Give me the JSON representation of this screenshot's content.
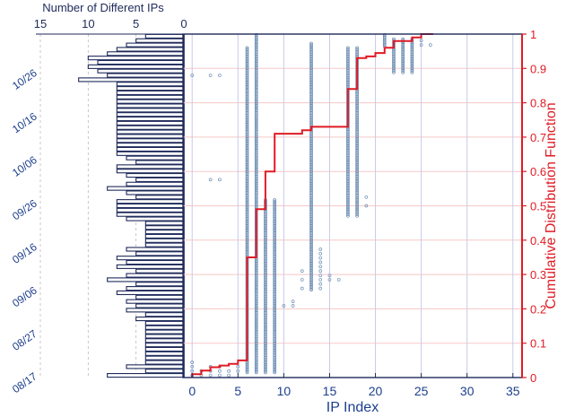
{
  "colors": {
    "axis_dark": "#1f2a5a",
    "bar_fill": "#ffffff",
    "bar_stroke": "#1f2a5a",
    "scatter": "#6f8fb4",
    "cdf_line": "#e01b24",
    "right_axis": "#e01b24",
    "grid_vertical": "#c8cbe8",
    "grid_horizontal": "#f7c8c8",
    "label_blue": "#1c3f8c"
  },
  "chart_data": [
    {
      "type": "bar",
      "orientation": "horizontal",
      "title": "",
      "xlabel": "Number of Different IPs",
      "xlim": [
        15,
        0
      ],
      "xticks": [
        15,
        10,
        5,
        0
      ],
      "ylabel": "",
      "yticks": [
        "08/17",
        "08/27",
        "09/06",
        "09/16",
        "09/26",
        "10/06",
        "10/16",
        "10/26"
      ],
      "ytick_days": [
        0,
        10,
        20,
        30,
        40,
        50,
        60,
        70
      ],
      "grid": "vertical dashed",
      "bars": [
        {
          "day": 0,
          "value": 8
        },
        {
          "day": 1,
          "value": 4
        },
        {
          "day": 2,
          "value": 6
        },
        {
          "day": 3,
          "value": 4
        },
        {
          "day": 4,
          "value": 4
        },
        {
          "day": 5,
          "value": 4
        },
        {
          "day": 6,
          "value": 4
        },
        {
          "day": 7,
          "value": 4
        },
        {
          "day": 8,
          "value": 4
        },
        {
          "day": 9,
          "value": 4
        },
        {
          "day": 10,
          "value": 4
        },
        {
          "day": 11,
          "value": 4
        },
        {
          "day": 12,
          "value": 4
        },
        {
          "day": 13,
          "value": 5
        },
        {
          "day": 14,
          "value": 4
        },
        {
          "day": 15,
          "value": 6
        },
        {
          "day": 16,
          "value": 5
        },
        {
          "day": 17,
          "value": 6
        },
        {
          "day": 18,
          "value": 5
        },
        {
          "day": 19,
          "value": 7
        },
        {
          "day": 20,
          "value": 6
        },
        {
          "day": 21,
          "value": 5
        },
        {
          "day": 22,
          "value": 8
        },
        {
          "day": 23,
          "value": 6
        },
        {
          "day": 24,
          "value": 5
        },
        {
          "day": 25,
          "value": 7
        },
        {
          "day": 26,
          "value": 6
        },
        {
          "day": 27,
          "value": 7
        },
        {
          "day": 28,
          "value": 5
        },
        {
          "day": 29,
          "value": 6
        },
        {
          "day": 30,
          "value": 4
        },
        {
          "day": 31,
          "value": 4
        },
        {
          "day": 32,
          "value": 4
        },
        {
          "day": 33,
          "value": 4
        },
        {
          "day": 34,
          "value": 4
        },
        {
          "day": 35,
          "value": 4
        },
        {
          "day": 36,
          "value": 6
        },
        {
          "day": 37,
          "value": 7
        },
        {
          "day": 38,
          "value": 7
        },
        {
          "day": 39,
          "value": 7
        },
        {
          "day": 40,
          "value": 7
        },
        {
          "day": 41,
          "value": 5
        },
        {
          "day": 42,
          "value": 6
        },
        {
          "day": 43,
          "value": 8
        },
        {
          "day": 44,
          "value": 6
        },
        {
          "day": 45,
          "value": 5
        },
        {
          "day": 46,
          "value": 6
        },
        {
          "day": 47,
          "value": 7
        },
        {
          "day": 48,
          "value": 7
        },
        {
          "day": 49,
          "value": 5
        },
        {
          "day": 50,
          "value": 6
        },
        {
          "day": 51,
          "value": 7
        },
        {
          "day": 52,
          "value": 7
        },
        {
          "day": 53,
          "value": 7
        },
        {
          "day": 54,
          "value": 7
        },
        {
          "day": 55,
          "value": 7
        },
        {
          "day": 56,
          "value": 7
        },
        {
          "day": 57,
          "value": 7
        },
        {
          "day": 58,
          "value": 7
        },
        {
          "day": 59,
          "value": 7
        },
        {
          "day": 60,
          "value": 7
        },
        {
          "day": 61,
          "value": 7
        },
        {
          "day": 62,
          "value": 7
        },
        {
          "day": 63,
          "value": 7
        },
        {
          "day": 64,
          "value": 7
        },
        {
          "day": 65,
          "value": 7
        },
        {
          "day": 66,
          "value": 7
        },
        {
          "day": 67,
          "value": 7
        },
        {
          "day": 68,
          "value": 11
        },
        {
          "day": 69,
          "value": 8
        },
        {
          "day": 70,
          "value": 9
        },
        {
          "day": 71,
          "value": 10
        },
        {
          "day": 72,
          "value": 9
        },
        {
          "day": 73,
          "value": 10
        },
        {
          "day": 74,
          "value": 8
        },
        {
          "day": 75,
          "value": 7
        },
        {
          "day": 76,
          "value": 6
        },
        {
          "day": 77,
          "value": 5
        },
        {
          "day": 78,
          "value": 4
        }
      ]
    },
    {
      "type": "scatter",
      "xlabel": "IP Index",
      "xlim": [
        -1,
        36
      ],
      "xticks": [
        0,
        5,
        10,
        15,
        20,
        25,
        30,
        35
      ],
      "ylim_days": [
        0,
        79
      ],
      "grid": "vertical solid",
      "columns": [
        {
          "x": 0,
          "days": [
            0,
            1,
            2,
            3,
            69
          ]
        },
        {
          "x": 1,
          "days": [
            0,
            1
          ]
        },
        {
          "x": 2,
          "days": [
            0,
            1,
            2,
            45,
            69
          ]
        },
        {
          "x": 3,
          "days": [
            0,
            1,
            2,
            45,
            69
          ]
        },
        {
          "x": 4,
          "days": [
            0,
            1
          ]
        },
        {
          "x": 5,
          "days": [
            1,
            2
          ]
        },
        {
          "x": 6,
          "days_range": [
            1,
            75
          ]
        },
        {
          "x": 7,
          "days_range": [
            1,
            78
          ]
        },
        {
          "x": 8,
          "days_range": [
            1,
            40
          ]
        },
        {
          "x": 9,
          "days_range": [
            1,
            40
          ]
        },
        {
          "x": 10,
          "days": [
            16
          ]
        },
        {
          "x": 11,
          "days": [
            16,
            17
          ]
        },
        {
          "x": 12,
          "days": [
            20,
            22,
            24
          ]
        },
        {
          "x": 13,
          "days_range": [
            20,
            76
          ]
        },
        {
          "x": 14,
          "days": [
            20,
            21,
            22,
            23,
            24,
            25,
            26,
            27,
            28,
            29
          ]
        },
        {
          "x": 15,
          "days": [
            22,
            23
          ]
        },
        {
          "x": 16,
          "days": [
            22
          ]
        },
        {
          "x": 17,
          "days_range": [
            37,
            75
          ]
        },
        {
          "x": 18,
          "days_range": [
            37,
            75
          ]
        },
        {
          "x": 19,
          "days": [
            39,
            41
          ]
        },
        {
          "x": 21,
          "days_range": [
            76,
            78
          ]
        },
        {
          "x": 22,
          "days_range": [
            70,
            77
          ]
        },
        {
          "x": 23,
          "days_range": [
            70,
            77
          ]
        },
        {
          "x": 24,
          "days_range": [
            70,
            77
          ]
        },
        {
          "x": 25,
          "days": [
            76,
            77
          ]
        },
        {
          "x": 26,
          "days": [
            76
          ]
        }
      ]
    },
    {
      "type": "line",
      "step": true,
      "xlabel": "IP Index",
      "ylabel": "Cumulative Distribution Function",
      "ylim": [
        0,
        1
      ],
      "yticks": [
        0,
        0.1,
        0.2,
        0.3,
        0.4,
        0.5,
        0.6,
        0.7,
        0.8,
        0.9,
        1
      ],
      "series": [
        {
          "x": [
            0,
            1,
            2,
            3,
            4,
            5,
            6,
            7,
            8,
            9,
            10,
            11,
            12,
            13,
            14,
            15,
            16,
            17,
            18,
            19,
            20,
            21,
            22,
            23,
            24,
            25,
            26
          ],
          "y": [
            0.01,
            0.02,
            0.03,
            0.035,
            0.04,
            0.05,
            0.35,
            0.49,
            0.6,
            0.71,
            0.71,
            0.71,
            0.72,
            0.73,
            0.73,
            0.73,
            0.73,
            0.84,
            0.93,
            0.935,
            0.945,
            0.96,
            0.98,
            0.98,
            0.99,
            1.0,
            1.0
          ]
        }
      ]
    }
  ]
}
